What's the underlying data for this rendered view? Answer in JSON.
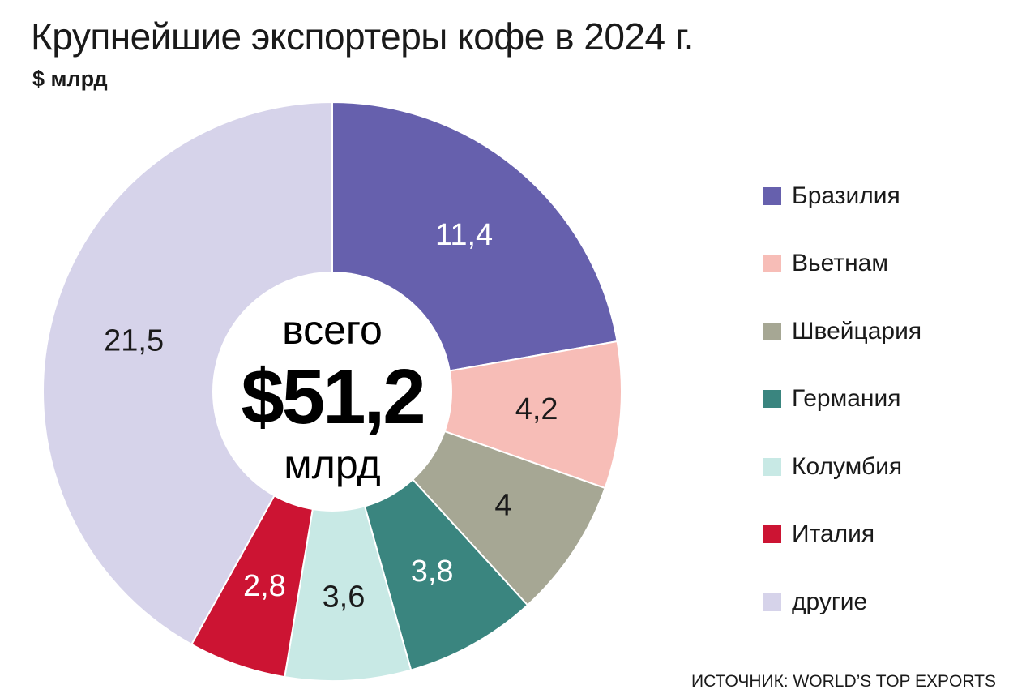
{
  "title": "Крупнейшие экспортеры кофе в 2024 г.",
  "subtitle": "$ млрд",
  "source": "ИСТОЧНИК: WORLD’S TOP EXPORTS",
  "center": {
    "top": "всего",
    "value": "$51,2",
    "bottom": "млрд"
  },
  "chart_data": {
    "type": "pie",
    "donut": true,
    "title": "Крупнейшие экспортеры кофе в 2024 г.",
    "unit": "$ млрд",
    "legend_position": "right",
    "slices": [
      {
        "name": "Бразилия",
        "value": 11.4,
        "label": "11,4",
        "color": "#6660ad",
        "label_color": "#ffffff"
      },
      {
        "name": "Вьетнам",
        "value": 4.2,
        "label": "4,2",
        "color": "#f7bdb7",
        "label_color": "#1a1a1a"
      },
      {
        "name": "Швейцария",
        "value": 4,
        "label": "4",
        "color": "#a6a794",
        "label_color": "#1a1a1a"
      },
      {
        "name": "Германия",
        "value": 3.8,
        "label": "3,8",
        "color": "#3a857f",
        "label_color": "#ffffff"
      },
      {
        "name": "Колумбия",
        "value": 3.6,
        "label": "3,6",
        "color": "#c8e9e5",
        "label_color": "#1a1a1a"
      },
      {
        "name": "Италия",
        "value": 2.8,
        "label": "2,8",
        "color": "#cc1433",
        "label_color": "#ffffff"
      },
      {
        "name": "другие",
        "value": 21.5,
        "label": "21,5",
        "color": "#d6d3ea",
        "label_color": "#1a1a1a"
      }
    ]
  }
}
